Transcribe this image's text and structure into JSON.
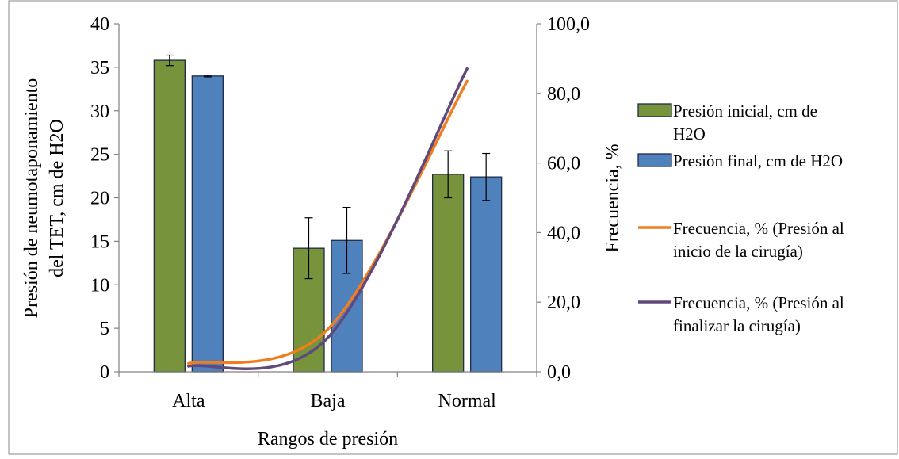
{
  "chart_data": {
    "type": "bar",
    "categories": [
      "Alta",
      "Baja",
      "Normal"
    ],
    "xlabel": "Rangos de presión",
    "ylabel": "Presión de neumotaponamiento del TET, cm de H2O",
    "ylabel_lines": [
      "Presión de neumotaponamiento",
      "del TET, cm de H2O"
    ],
    "y2label": "Frecuencia, %",
    "ylim": [
      0,
      40
    ],
    "yticks": [
      "0",
      "5",
      "10",
      "15",
      "20",
      "25",
      "30",
      "35",
      "40"
    ],
    "y2lim": [
      0,
      100
    ],
    "y2ticks": [
      "0,0",
      "20,0",
      "40,0",
      "60,0",
      "80,0",
      "100,0"
    ],
    "grid": false,
    "legend_position": "right",
    "series": [
      {
        "name": "Presión inicial, cm de H2O",
        "legend_lines": [
          "Presión inicial, cm de",
          "H2O"
        ],
        "kind": "bar",
        "axis": "left",
        "color": "#77933C",
        "values": [
          35.8,
          14.2,
          22.7
        ],
        "error": [
          0.6,
          3.5,
          2.7
        ]
      },
      {
        "name": "Presión final, cm de H2O",
        "legend_lines": [
          "Presión final, cm de H2O"
        ],
        "kind": "bar",
        "axis": "left",
        "color": "#4F81BD",
        "values": [
          34.0,
          15.1,
          22.4
        ],
        "error": [
          0.1,
          3.8,
          2.7
        ]
      },
      {
        "name": "Frecuencia, % (Presión al inicio de la cirugía)",
        "legend_lines": [
          "Frecuencia, % (Presión al",
          "inicio de la cirugía)"
        ],
        "kind": "line",
        "axis": "right",
        "color": "#F07D1F",
        "values": [
          2.4,
          12.2,
          83.5
        ]
      },
      {
        "name": "Frecuencia, % (Presión al finalizar la cirugía)",
        "legend_lines": [
          "Frecuencia, % (Presión al",
          "finalizar la cirugía)"
        ],
        "kind": "line",
        "axis": "right",
        "color": "#604A7B",
        "values": [
          1.6,
          9.8,
          87.1
        ]
      }
    ]
  }
}
